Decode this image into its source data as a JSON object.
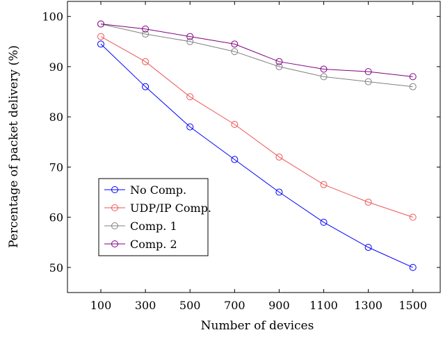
{
  "chart_data": {
    "type": "line",
    "xlabel": "Number of devices",
    "ylabel": "Percentage of packet delivery (%)",
    "x": [
      100,
      300,
      500,
      700,
      900,
      1100,
      1300,
      1500
    ],
    "x_tick_labels": [
      "100",
      "300",
      "500",
      "700",
      "900",
      "1100",
      "1300",
      "1500"
    ],
    "ylim": [
      45,
      103
    ],
    "y_ticks": [
      50,
      60,
      70,
      80,
      90,
      100
    ],
    "y_tick_labels": [
      "50",
      "60",
      "70",
      "80",
      "90",
      "100"
    ],
    "grid": false,
    "legend_position": "lower-left",
    "series": [
      {
        "name": "No Comp.",
        "color": "#0000ff",
        "marker": "circle",
        "values": [
          94.5,
          86,
          78,
          71.5,
          65,
          59,
          54,
          50
        ]
      },
      {
        "name": "UDP/IP Comp.",
        "color": "#ee5555",
        "marker": "circle",
        "values": [
          96,
          91,
          84,
          78.5,
          72,
          66.5,
          63,
          60
        ]
      },
      {
        "name": "Comp. 1",
        "color": "#808080",
        "marker": "circle",
        "values": [
          98.5,
          96.5,
          95,
          93,
          90,
          88,
          87,
          86
        ]
      },
      {
        "name": "Comp. 2",
        "color": "#800080",
        "marker": "circle",
        "values": [
          98.5,
          97.5,
          96,
          94.5,
          91,
          89.5,
          89,
          88
        ]
      }
    ]
  }
}
